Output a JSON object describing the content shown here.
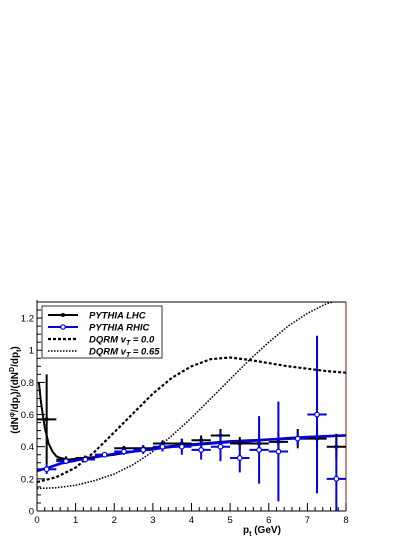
{
  "chart_data": {
    "type": "line",
    "title": "",
    "xlabel": "p_t (GeV)",
    "ylabel": "(dN^φ/dp_t)/(dN^D/dp_t)",
    "xlabel_main": "p",
    "xlabel_sub": "t",
    "xlabel_unit": " (GeV)",
    "ylabel_parts": [
      "(dN",
      "φ",
      "/dp",
      "t",
      ")/(dN",
      "D",
      "/dp",
      "t",
      ")"
    ],
    "xlim": [
      0,
      8
    ],
    "ylim": [
      0,
      1.3
    ],
    "xticks": [
      "0",
      "1",
      "2",
      "3",
      "4",
      "5",
      "6",
      "7",
      "8"
    ],
    "yticks": [
      "0",
      "0.2",
      "0.4",
      "0.6",
      "0.8",
      "1",
      "1.2"
    ],
    "legend_position": "top-left",
    "legend": [
      {
        "label": "PYTHIA LHC",
        "style": "black-marker-line"
      },
      {
        "label": "PYTHIA RHIC",
        "style": "blue-marker-line"
      },
      {
        "label_main": "DQRM v",
        "label_sub": "T",
        "label_tail": " = 0.0",
        "style": "dashed"
      },
      {
        "label_main": "DQRM v",
        "label_sub": "T",
        "label_tail": " = 0.65",
        "style": "dotted"
      }
    ],
    "series": [
      {
        "name": "PYTHIA LHC",
        "color": "#000000",
        "points": [
          {
            "x": 0.25,
            "y": 0.57,
            "yerr": 0.28,
            "xerr": 0.25
          },
          {
            "x": 0.75,
            "y": 0.32,
            "yerr": 0.02,
            "xerr": 0.25
          },
          {
            "x": 1.25,
            "y": 0.33,
            "yerr": 0.015,
            "xerr": 0.25
          },
          {
            "x": 1.75,
            "y": 0.35,
            "yerr": 0.015,
            "xerr": 0.25
          },
          {
            "x": 2.25,
            "y": 0.39,
            "yerr": 0.015,
            "xerr": 0.25
          },
          {
            "x": 2.75,
            "y": 0.39,
            "yerr": 0.02,
            "xerr": 0.25
          },
          {
            "x": 3.25,
            "y": 0.42,
            "yerr": 0.02,
            "xerr": 0.25
          },
          {
            "x": 3.75,
            "y": 0.42,
            "yerr": 0.03,
            "xerr": 0.25
          },
          {
            "x": 4.25,
            "y": 0.44,
            "yerr": 0.03,
            "xerr": 0.25
          },
          {
            "x": 4.75,
            "y": 0.47,
            "yerr": 0.04,
            "xerr": 0.25
          },
          {
            "x": 5.25,
            "y": 0.42,
            "yerr": 0.04,
            "xerr": 0.25
          },
          {
            "x": 5.75,
            "y": 0.42,
            "yerr": 0.05,
            "xerr": 0.25
          },
          {
            "x": 6.25,
            "y": 0.43,
            "yerr": 0.05,
            "xerr": 0.25
          },
          {
            "x": 6.75,
            "y": 0.45,
            "yerr": 0.06,
            "xerr": 0.25
          },
          {
            "x": 7.25,
            "y": 0.45,
            "yerr": 0.07,
            "xerr": 0.25
          },
          {
            "x": 7.75,
            "y": 0.4,
            "yerr": 0.08,
            "xerr": 0.25
          }
        ],
        "fit_curve": [
          [
            0.05,
            0.8
          ],
          [
            0.1,
            0.68
          ],
          [
            0.2,
            0.52
          ],
          [
            0.3,
            0.42
          ],
          [
            0.4,
            0.37
          ],
          [
            0.5,
            0.34
          ],
          [
            0.6,
            0.33
          ],
          [
            0.8,
            0.32
          ],
          [
            1.0,
            0.325
          ],
          [
            1.5,
            0.335
          ],
          [
            2.0,
            0.35
          ],
          [
            2.5,
            0.37
          ],
          [
            3.0,
            0.39
          ],
          [
            3.5,
            0.405
          ],
          [
            4.0,
            0.415
          ],
          [
            4.5,
            0.425
          ],
          [
            5.0,
            0.435
          ],
          [
            5.5,
            0.44
          ],
          [
            6.0,
            0.445
          ],
          [
            6.5,
            0.455
          ],
          [
            7.0,
            0.46
          ],
          [
            7.5,
            0.465
          ],
          [
            8.0,
            0.47
          ]
        ]
      },
      {
        "name": "PYTHIA RHIC",
        "color": "#0000e0",
        "points": [
          {
            "x": 0.25,
            "y": 0.26,
            "yerr": 0.03,
            "xerr": 0.25
          },
          {
            "x": 0.75,
            "y": 0.31,
            "yerr": 0.015,
            "xerr": 0.25
          },
          {
            "x": 1.25,
            "y": 0.32,
            "yerr": 0.015,
            "xerr": 0.25
          },
          {
            "x": 1.75,
            "y": 0.35,
            "yerr": 0.015,
            "xerr": 0.25
          },
          {
            "x": 2.25,
            "y": 0.37,
            "yerr": 0.02,
            "xerr": 0.25
          },
          {
            "x": 2.75,
            "y": 0.38,
            "yerr": 0.025,
            "xerr": 0.25
          },
          {
            "x": 3.25,
            "y": 0.4,
            "yerr": 0.03,
            "xerr": 0.25
          },
          {
            "x": 3.75,
            "y": 0.4,
            "yerr": 0.05,
            "xerr": 0.25
          },
          {
            "x": 4.25,
            "y": 0.38,
            "yerr": 0.06,
            "xerr": 0.25
          },
          {
            "x": 4.75,
            "y": 0.4,
            "yerr": 0.09,
            "xerr": 0.25
          },
          {
            "x": 5.25,
            "y": 0.33,
            "yerr": 0.09,
            "xerr": 0.25
          },
          {
            "x": 5.75,
            "y": 0.38,
            "yerr": 0.21,
            "xerr": 0.25
          },
          {
            "x": 6.25,
            "y": 0.37,
            "yerr": 0.31,
            "xerr": 0.25
          },
          {
            "x": 6.75,
            "y": 0.45,
            "yerr": 0.04,
            "xerr": 0.25
          },
          {
            "x": 7.25,
            "y": 0.6,
            "yerr": 0.49,
            "xerr": 0.25
          },
          {
            "x": 7.75,
            "y": 0.2,
            "yerr": 0.25,
            "xerr": 0.25
          }
        ],
        "fit_curve": [
          [
            0.0,
            0.25
          ],
          [
            0.3,
            0.27
          ],
          [
            0.6,
            0.295
          ],
          [
            1.0,
            0.315
          ],
          [
            1.5,
            0.335
          ],
          [
            2.0,
            0.355
          ],
          [
            2.5,
            0.37
          ],
          [
            3.0,
            0.385
          ],
          [
            3.5,
            0.4
          ],
          [
            4.0,
            0.41
          ],
          [
            4.5,
            0.42
          ],
          [
            5.0,
            0.43
          ],
          [
            5.5,
            0.435
          ],
          [
            6.0,
            0.445
          ],
          [
            6.5,
            0.45
          ],
          [
            7.0,
            0.46
          ],
          [
            7.5,
            0.465
          ],
          [
            8.0,
            0.47
          ]
        ]
      },
      {
        "name": "DQRM v_T = 0.0",
        "color": "#000000",
        "dash": "dashed",
        "curve": [
          [
            0.0,
            0.18
          ],
          [
            0.5,
            0.21
          ],
          [
            1.0,
            0.27
          ],
          [
            1.5,
            0.37
          ],
          [
            2.0,
            0.49
          ],
          [
            2.5,
            0.61
          ],
          [
            3.0,
            0.73
          ],
          [
            3.5,
            0.83
          ],
          [
            4.0,
            0.9
          ],
          [
            4.5,
            0.945
          ],
          [
            5.0,
            0.955
          ],
          [
            5.5,
            0.94
          ],
          [
            6.0,
            0.92
          ],
          [
            6.5,
            0.9
          ],
          [
            7.0,
            0.885
          ],
          [
            7.5,
            0.87
          ],
          [
            8.0,
            0.86
          ]
        ]
      },
      {
        "name": "DQRM v_T = 0.65",
        "color": "#000000",
        "dash": "dotted",
        "curve": [
          [
            0.0,
            0.14
          ],
          [
            0.5,
            0.145
          ],
          [
            1.0,
            0.16
          ],
          [
            1.5,
            0.19
          ],
          [
            2.0,
            0.23
          ],
          [
            2.5,
            0.29
          ],
          [
            3.0,
            0.37
          ],
          [
            3.5,
            0.47
          ],
          [
            4.0,
            0.58
          ],
          [
            4.5,
            0.7
          ],
          [
            5.0,
            0.82
          ],
          [
            5.5,
            0.94
          ],
          [
            6.0,
            1.05
          ],
          [
            6.5,
            1.15
          ],
          [
            7.0,
            1.23
          ],
          [
            7.5,
            1.29
          ],
          [
            7.8,
            1.31
          ]
        ]
      }
    ]
  }
}
